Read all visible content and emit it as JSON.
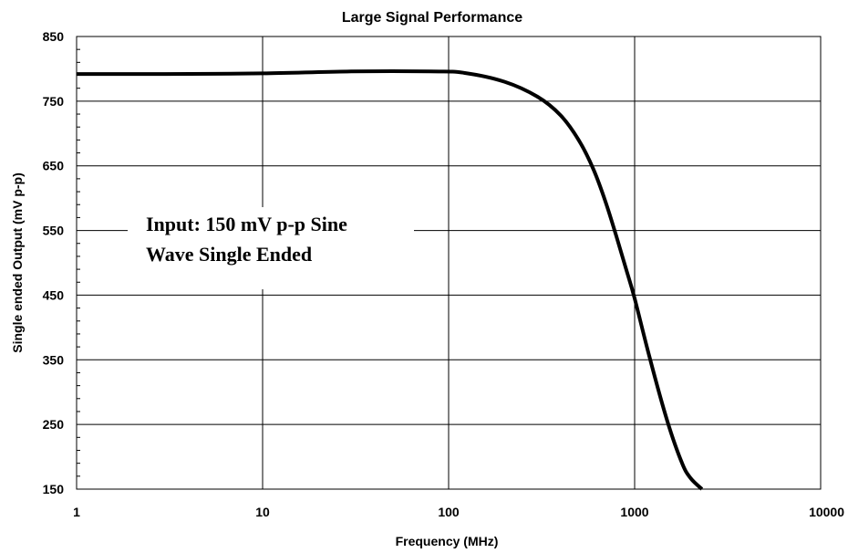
{
  "chart_data": {
    "type": "line",
    "title": "Large Signal Performance",
    "xlabel": "Frequency (MHz)",
    "ylabel": "Single ended Output (mV p-p)",
    "x_scale": "log",
    "xlim": [
      1,
      10000
    ],
    "ylim": [
      150,
      850
    ],
    "x_ticks": [
      1,
      10,
      100,
      1000,
      10000
    ],
    "x_tick_labels": [
      "1",
      "10",
      "100",
      "1000",
      "10000"
    ],
    "y_ticks": [
      150,
      250,
      350,
      450,
      550,
      650,
      750,
      850
    ],
    "y_tick_labels": [
      "150",
      "250",
      "350",
      "450",
      "550",
      "650",
      "750",
      "850"
    ],
    "grid": true,
    "legend": "none",
    "annotation": {
      "lines": [
        "Input: 150 mV p-p Sine",
        "Wave Single Ended"
      ]
    },
    "series": [
      {
        "color": "#000000",
        "x": [
          1,
          3,
          10,
          30,
          80,
          120,
          200,
          300,
          400,
          500,
          600,
          700,
          800,
          900,
          1000,
          1200,
          1500,
          1800,
          2000,
          2300
        ],
        "y": [
          792,
          792,
          793,
          796,
          796,
          794,
          780,
          757,
          728,
          690,
          645,
          593,
          540,
          490,
          445,
          355,
          255,
          190,
          167,
          150
        ]
      }
    ]
  }
}
